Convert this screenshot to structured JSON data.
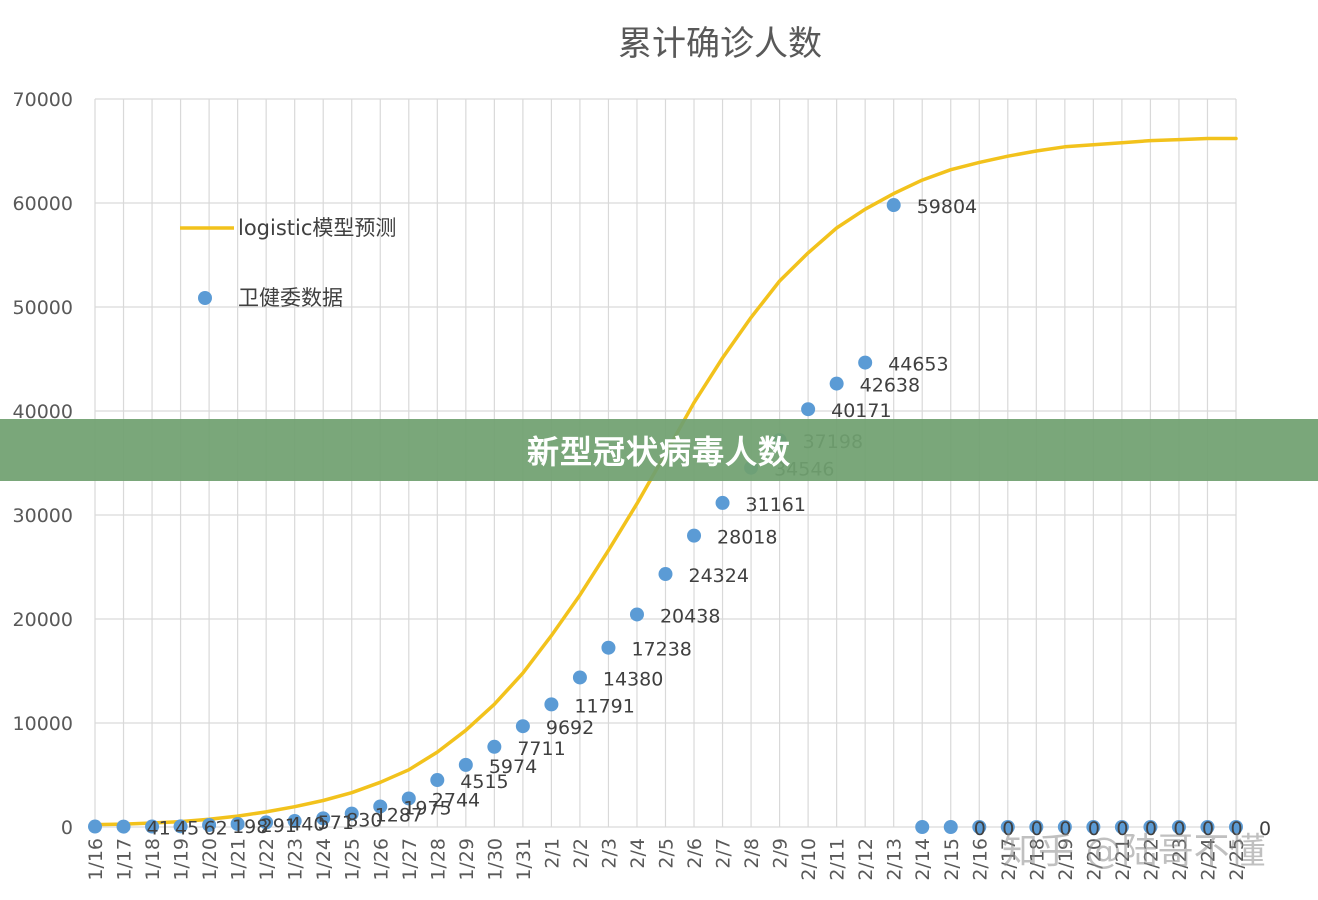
{
  "chart_data": {
    "type": "line",
    "title": "累计确诊人数",
    "categories": [
      "1/16",
      "1/17",
      "1/18",
      "1/19",
      "1/20",
      "1/21",
      "1/22",
      "1/23",
      "1/24",
      "1/25",
      "1/26",
      "1/27",
      "1/28",
      "1/29",
      "1/30",
      "1/31",
      "2/1",
      "2/2",
      "2/3",
      "2/4",
      "2/5",
      "2/6",
      "2/7",
      "2/8",
      "2/9",
      "2/10",
      "2/11",
      "2/12",
      "2/13",
      "2/14",
      "2/15",
      "2/16",
      "2/17",
      "2/18",
      "2/19",
      "2/20",
      "2/21",
      "2/22",
      "2/23",
      "2/24",
      "2/25"
    ],
    "ylim": [
      0,
      70000
    ],
    "yticks": [
      0,
      10000,
      20000,
      30000,
      40000,
      50000,
      60000,
      70000
    ],
    "grid": true,
    "legend_position": "top-left",
    "series": [
      {
        "name": "logistic模型预测",
        "kind": "line",
        "color": "#F2C21C",
        "values": [
          230,
          280,
          380,
          520,
          750,
          1050,
          1450,
          1950,
          2550,
          3300,
          4300,
          5500,
          7200,
          9300,
          11800,
          14800,
          18400,
          22300,
          26600,
          31100,
          35900,
          40800,
          45100,
          49000,
          52500,
          55200,
          57600,
          59400,
          60900,
          62200,
          63200,
          63900,
          64500,
          65000,
          65400,
          65600,
          65800,
          66000,
          66100,
          66200,
          66200
        ]
      },
      {
        "name": "卫健委数据",
        "kind": "scatter",
        "color": "#5B9BD5",
        "values": [
          45,
          41,
          45,
          62,
          198,
          291,
          440,
          571,
          830,
          1287,
          1975,
          2744,
          4515,
          5974,
          7711,
          9692,
          11791,
          14380,
          17238,
          20438,
          24324,
          28018,
          31161,
          34546,
          37198,
          40171,
          42638,
          44653,
          59804,
          0,
          0,
          0,
          0,
          0,
          0,
          0,
          0,
          0,
          0,
          0,
          0
        ],
        "labels": [
          "",
          "41",
          "45",
          "62",
          "198",
          "291",
          "440",
          "571",
          "830",
          "1287",
          "1975",
          "2744",
          "4515",
          "5974",
          "7711",
          "9692",
          "11791",
          "14380",
          "17238",
          "20438",
          "24324",
          "28018",
          "31161",
          "34546",
          "37198",
          "40171",
          "42638",
          "44653",
          "59804",
          "",
          "0",
          "0",
          "0",
          "0",
          "0",
          "0",
          "0",
          "0",
          "0",
          "0",
          "0"
        ]
      }
    ]
  },
  "banner": {
    "text": "新型冠状病毒人数"
  },
  "watermark": {
    "text": "知乎 @陆哥不懂"
  }
}
